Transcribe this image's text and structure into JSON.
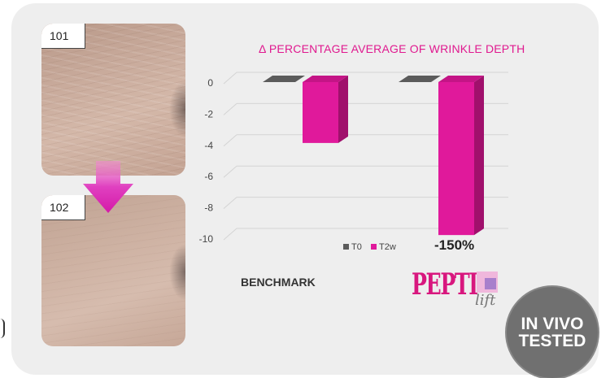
{
  "photos": [
    {
      "label": "101",
      "position": "top"
    },
    {
      "label": "102",
      "position": "bottom"
    }
  ],
  "colors": {
    "accent": "#e0198f",
    "t0": "#5b5b5b",
    "t2w_front": "#e0199b",
    "t2w_side": "#a0106c",
    "t2w_top": "#c41486",
    "card_bg": "#eeeeee",
    "badge_bg": "#707070"
  },
  "chart_data": {
    "type": "bar",
    "title": "Δ PERCENTAGE AVERAGE OF WRINKLE DEPTH",
    "categories": [
      "BENCHMARK",
      "PEPTIlift"
    ],
    "series": [
      {
        "name": "T0",
        "values": [
          0,
          0
        ]
      },
      {
        "name": "T2w",
        "values": [
          -3.9,
          -9.8
        ]
      }
    ],
    "yticks": [
      "0",
      "-2",
      "-4",
      "-6",
      "-8",
      "-10"
    ],
    "ylim": [
      -10,
      0
    ],
    "grid": true,
    "legend_position": "bottom",
    "three_d": true,
    "annotations": [
      "-150%"
    ]
  },
  "labels": {
    "benchmark": "BENCHMARK",
    "percent": "-150%"
  },
  "logo": {
    "main": "PEPTI",
    "sub": "lift",
    "icon": "square-logo-icon"
  },
  "badge": {
    "line1": "IN VIVO",
    "line2": "TESTED"
  }
}
